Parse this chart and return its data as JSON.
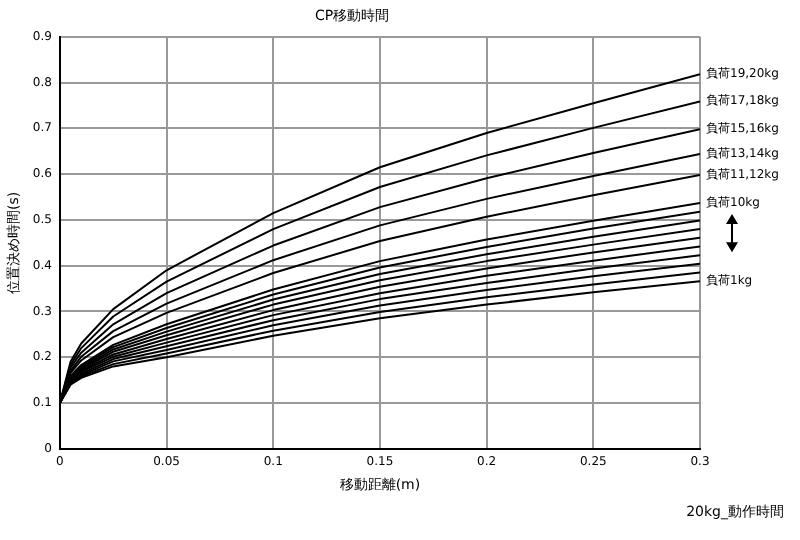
{
  "chart_data": {
    "type": "line",
    "title": "CP移動時間",
    "xlabel": "移動距離(m)",
    "ylabel": "位置決め時間(s)",
    "x": [
      0,
      0.005,
      0.01,
      0.025,
      0.05,
      0.1,
      0.15,
      0.2,
      0.25,
      0.3
    ],
    "xlim": [
      0,
      0.3
    ],
    "xticks": [
      0,
      0.05,
      0.1,
      0.15,
      0.2,
      0.25,
      0.3
    ],
    "ylim": [
      0,
      0.9
    ],
    "yticks": [
      0,
      0.1,
      0.2,
      0.3,
      0.4,
      0.5,
      0.6,
      0.7,
      0.8,
      0.9
    ],
    "grid": true,
    "legend": false,
    "marker": "none",
    "line_style": "solid",
    "annotations": [
      "20kg_動作時間"
    ],
    "series": [
      {
        "name": "負荷1kg",
        "color": "#000000",
        "values": [
          0.1,
          0.14,
          0.155,
          0.18,
          0.2,
          0.247,
          0.285,
          0.315,
          0.342,
          0.366
        ]
      },
      {
        "color": "#000000",
        "values": [
          0.1,
          0.142,
          0.158,
          0.185,
          0.208,
          0.258,
          0.299,
          0.331,
          0.359,
          0.385
        ]
      },
      {
        "color": "#000000",
        "values": [
          0.1,
          0.144,
          0.161,
          0.191,
          0.216,
          0.27,
          0.313,
          0.347,
          0.377,
          0.404
        ]
      },
      {
        "color": "#000000",
        "values": [
          0.1,
          0.146,
          0.164,
          0.196,
          0.224,
          0.281,
          0.327,
          0.362,
          0.394,
          0.423
        ]
      },
      {
        "color": "#000000",
        "values": [
          0.1,
          0.148,
          0.168,
          0.201,
          0.232,
          0.292,
          0.34,
          0.378,
          0.411,
          0.442
        ]
      },
      {
        "color": "#000000",
        "values": [
          0.1,
          0.151,
          0.171,
          0.206,
          0.24,
          0.303,
          0.354,
          0.394,
          0.429,
          0.461
        ]
      },
      {
        "color": "#000000",
        "values": [
          0.1,
          0.153,
          0.174,
          0.212,
          0.248,
          0.315,
          0.368,
          0.41,
          0.446,
          0.48
        ]
      },
      {
        "color": "#000000",
        "values": [
          0.1,
          0.155,
          0.177,
          0.217,
          0.256,
          0.326,
          0.382,
          0.425,
          0.463,
          0.499
        ]
      },
      {
        "color": "#000000",
        "values": [
          0.1,
          0.157,
          0.18,
          0.222,
          0.264,
          0.337,
          0.396,
          0.441,
          0.481,
          0.518
        ]
      },
      {
        "name": "負荷10kg",
        "color": "#000000",
        "values": [
          0.1,
          0.159,
          0.183,
          0.227,
          0.272,
          0.348,
          0.41,
          0.457,
          0.498,
          0.537
        ]
      },
      {
        "name": "負荷11,12kg",
        "color": "#000000",
        "values": [
          0.1,
          0.166,
          0.193,
          0.244,
          0.297,
          0.384,
          0.454,
          0.507,
          0.554,
          0.598
        ]
      },
      {
        "name": "負荷13,14kg",
        "color": "#000000",
        "values": [
          0.1,
          0.171,
          0.201,
          0.257,
          0.317,
          0.412,
          0.488,
          0.546,
          0.596,
          0.644
        ]
      },
      {
        "name": "負荷15,16kg",
        "color": "#000000",
        "values": [
          0.1,
          0.177,
          0.21,
          0.272,
          0.34,
          0.444,
          0.528,
          0.591,
          0.646,
          0.698
        ]
      },
      {
        "name": "負荷17,18kg",
        "color": "#000000",
        "values": [
          0.1,
          0.183,
          0.22,
          0.289,
          0.365,
          0.48,
          0.572,
          0.641,
          0.701,
          0.759
        ]
      },
      {
        "name": "負荷19,20kg",
        "color": "#000000",
        "values": [
          0.1,
          0.19,
          0.23,
          0.305,
          0.39,
          0.515,
          0.615,
          0.69,
          0.755,
          0.818
        ]
      }
    ]
  }
}
